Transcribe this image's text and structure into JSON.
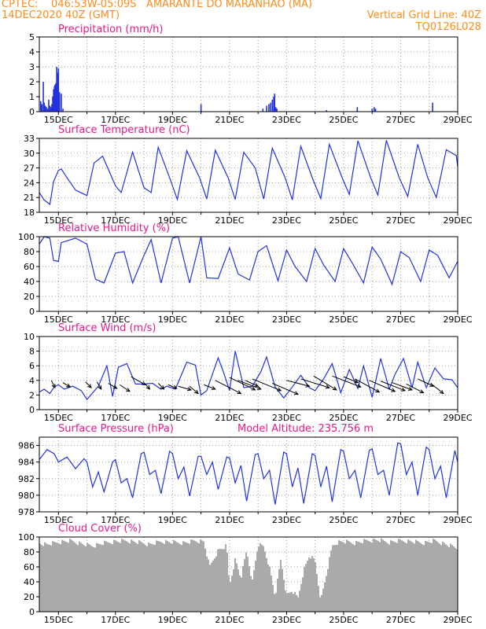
{
  "header": {
    "line1_left": "CPTEC:    046:53W-05:09S   AMARANTE DO MARANHAO (MA)",
    "line2_left": "14DEC2020 40Z (GMT)",
    "line2_right": "Vertical Grid Line: 40Z",
    "line3_right": "TQ0126L028"
  },
  "colors": {
    "header": "#ff8c1a",
    "title": "#e8198b",
    "line": "#2233dd",
    "cloud": "#aaaaaa",
    "wind_arrow": "#000000",
    "grid": "#999999"
  },
  "x_axis": {
    "min": 14.33,
    "max": 29.0,
    "tick_values": [
      15,
      17,
      19,
      21,
      23,
      25,
      27,
      29
    ],
    "tick_labels": [
      "15DEC",
      "17DEC",
      "19DEC",
      "21DEC",
      "23DEC",
      "25DEC",
      "27DEC",
      "29DEC"
    ],
    "minor_ticks": [
      16,
      18,
      20,
      22,
      24,
      26,
      28
    ]
  },
  "chart_data": [
    {
      "type": "bar",
      "title": "Precipitation (mm/h)",
      "ylim": [
        0,
        5
      ],
      "yticks": [
        0,
        1,
        2,
        3,
        4,
        5
      ],
      "series": [
        {
          "x": [
            14.38,
            14.42,
            14.47,
            14.5,
            14.54,
            14.58,
            14.62,
            14.66,
            14.7,
            14.74,
            14.77,
            14.8,
            14.83,
            14.86,
            14.88,
            14.91,
            14.94,
            14.97,
            15.0,
            15.04,
            15.1,
            15.16,
            20.0,
            22.17,
            22.3,
            22.38,
            22.44,
            22.5,
            22.55,
            22.58,
            22.62,
            22.66,
            24.4,
            25.48,
            26.0,
            26.07,
            26.12,
            28.12
          ],
          "values": [
            0.7,
            0.5,
            2.0,
            0.6,
            0.4,
            0.3,
            0.2,
            0.8,
            0.4,
            0.3,
            0.5,
            1.0,
            1.5,
            1.7,
            1.8,
            1.9,
            3.0,
            2.6,
            2.9,
            1.3,
            1.2,
            0.2,
            0.5,
            0.2,
            0.4,
            0.5,
            0.6,
            0.8,
            1.0,
            1.2,
            0.3,
            0.2,
            0.1,
            0.3,
            0.2,
            0.3,
            0.2,
            0.6
          ]
        }
      ]
    },
    {
      "type": "line",
      "title": "Surface Temperature (nC)",
      "ylim": [
        18,
        33
      ],
      "yticks": [
        18,
        21,
        24,
        27,
        30,
        33
      ],
      "series": [
        {
          "x": [
            14.33,
            14.5,
            14.7,
            14.83,
            15.0,
            15.1,
            15.3,
            15.6,
            16.0,
            16.25,
            16.55,
            17.0,
            17.2,
            17.6,
            18.0,
            18.25,
            18.5,
            18.9,
            19.17,
            19.5,
            19.95,
            20.2,
            20.5,
            20.95,
            21.2,
            21.5,
            21.9,
            22.2,
            22.5,
            22.95,
            23.2,
            23.5,
            23.9,
            24.2,
            24.5,
            24.95,
            25.2,
            25.5,
            25.95,
            26.2,
            26.5,
            26.95,
            27.25,
            27.6,
            27.95,
            28.25,
            28.6,
            28.95,
            29.0
          ],
          "values": [
            22.0,
            20.5,
            19.6,
            24.2,
            26.5,
            26.8,
            25.0,
            22.5,
            21.4,
            28.0,
            29.4,
            23.4,
            22.0,
            30.2,
            23.0,
            22.0,
            31.2,
            25.0,
            20.6,
            30.5,
            25.0,
            20.7,
            30.6,
            25.0,
            20.6,
            30.2,
            27.0,
            20.7,
            31.0,
            25.0,
            20.5,
            31.4,
            25.0,
            20.8,
            31.8,
            25.0,
            21.6,
            32.5,
            25.0,
            21.5,
            32.6,
            25.0,
            21.2,
            31.8,
            25.0,
            21.0,
            30.7,
            29.5,
            27.2
          ]
        }
      ]
    },
    {
      "type": "line",
      "title": "Relative Humidity (%)",
      "ylim": [
        0,
        100
      ],
      "yticks": [
        0,
        20,
        40,
        60,
        80,
        100
      ],
      "series": [
        {
          "x": [
            14.33,
            14.5,
            14.7,
            14.83,
            15.0,
            15.1,
            15.6,
            16.0,
            16.3,
            16.6,
            17.0,
            17.3,
            17.6,
            18.0,
            18.25,
            18.6,
            19.0,
            19.2,
            19.6,
            20.0,
            20.2,
            20.6,
            21.0,
            21.3,
            21.7,
            22.0,
            22.3,
            22.7,
            23.0,
            23.3,
            23.7,
            24.0,
            24.3,
            24.7,
            25.0,
            25.3,
            25.7,
            26.0,
            26.3,
            26.7,
            27.0,
            27.3,
            27.7,
            28.0,
            28.3,
            28.7,
            29.0
          ],
          "values": [
            90,
            100,
            98,
            68,
            67,
            92,
            98,
            90,
            43,
            38,
            78,
            80,
            38,
            75,
            96,
            38,
            98,
            100,
            38,
            100,
            45,
            44,
            85,
            50,
            42,
            80,
            88,
            41,
            82,
            60,
            40,
            84,
            62,
            40,
            84,
            65,
            38,
            86,
            70,
            36,
            80,
            72,
            40,
            82,
            75,
            45,
            67
          ]
        }
      ]
    },
    {
      "type": "line",
      "title": "Surface Wind (m/s)",
      "ylim": [
        0,
        10
      ],
      "yticks": [
        0,
        2,
        4,
        6,
        8,
        10
      ],
      "series": [
        {
          "x": [
            14.33,
            14.5,
            14.7,
            14.85,
            15.0,
            15.2,
            15.5,
            15.8,
            16.0,
            16.4,
            16.7,
            16.9,
            17.1,
            17.4,
            17.7,
            18.0,
            18.3,
            18.6,
            18.8,
            19.1,
            19.5,
            19.8,
            20.0,
            20.2,
            20.6,
            20.8,
            21.0,
            21.2,
            21.5,
            21.8,
            22.1,
            22.3,
            22.6,
            22.9,
            23.2,
            23.5,
            23.8,
            24.0,
            24.3,
            24.6,
            24.9,
            25.2,
            25.5,
            25.7,
            26.0,
            26.3,
            26.6,
            26.8,
            27.1,
            27.4,
            27.6,
            27.9,
            28.2,
            28.5,
            28.8,
            29.0
          ],
          "values": [
            2.4,
            2.8,
            2.2,
            3.1,
            3.4,
            2.8,
            3.2,
            2.6,
            1.4,
            3.2,
            6.0,
            1.8,
            5.8,
            6.3,
            3.5,
            3.5,
            3.6,
            2.8,
            3.2,
            2.8,
            6.5,
            6.1,
            2.0,
            2.6,
            7.1,
            5.0,
            2.6,
            8.0,
            3.0,
            3.2,
            5.2,
            7.2,
            3.1,
            1.6,
            3.1,
            4.7,
            3.0,
            2.6,
            4.2,
            6.3,
            2.3,
            5.5,
            2.9,
            6.0,
            1.7,
            7.0,
            2.8,
            4.8,
            7.0,
            3.0,
            6.5,
            3.0,
            5.7,
            4.2,
            4.1,
            3.0
          ]
        }
      ],
      "arrows": [
        {
          "x": 14.75,
          "y": 4.0,
          "dx": 0.13,
          "dy": -1.0
        },
        {
          "x": 15.15,
          "y": 3.7,
          "dx": 0.26,
          "dy": -0.6
        },
        {
          "x": 15.95,
          "y": 3.8,
          "dx": 0.2,
          "dy": -0.8
        },
        {
          "x": 16.35,
          "y": 3.8,
          "dx": 0.15,
          "dy": -1.0
        },
        {
          "x": 16.75,
          "y": 3.6,
          "dx": 0.3,
          "dy": -0.7
        },
        {
          "x": 17.15,
          "y": 3.4,
          "dx": 0.35,
          "dy": -0.9
        },
        {
          "x": 17.55,
          "y": 4.5,
          "dx": 0.5,
          "dy": -1.1
        },
        {
          "x": 18.05,
          "y": 3.5,
          "dx": 0.15,
          "dy": -0.7
        },
        {
          "x": 18.5,
          "y": 3.6,
          "dx": 0.2,
          "dy": -0.8
        },
        {
          "x": 18.85,
          "y": 3.4,
          "dx": 0.3,
          "dy": -0.5
        },
        {
          "x": 19.2,
          "y": 3.2,
          "dx": 0.45,
          "dy": -0.5
        },
        {
          "x": 19.6,
          "y": 3.2,
          "dx": 0.3,
          "dy": -1.0
        },
        {
          "x": 20.1,
          "y": 3.4,
          "dx": 0.4,
          "dy": -0.6
        },
        {
          "x": 20.5,
          "y": 4.0,
          "dx": 0.9,
          "dy": -1.8
        },
        {
          "x": 21.0,
          "y": 4.4,
          "dx": 0.9,
          "dy": -1.7
        },
        {
          "x": 21.3,
          "y": 4.0,
          "dx": 0.8,
          "dy": -1.2
        },
        {
          "x": 21.55,
          "y": 4.0,
          "dx": 0.45,
          "dy": -0.8
        },
        {
          "x": 21.8,
          "y": 4.2,
          "dx": 1.0,
          "dy": -1.6
        },
        {
          "x": 22.5,
          "y": 3.6,
          "dx": 0.9,
          "dy": -1.5
        },
        {
          "x": 23.0,
          "y": 4.0,
          "dx": 0.8,
          "dy": -0.8
        },
        {
          "x": 23.5,
          "y": 4.2,
          "dx": 1.0,
          "dy": -1.2
        },
        {
          "x": 23.95,
          "y": 4.6,
          "dx": 0.8,
          "dy": -1.9
        },
        {
          "x": 24.6,
          "y": 4.6,
          "dx": 1.0,
          "dy": -1.5
        },
        {
          "x": 25.0,
          "y": 4.5,
          "dx": 0.5,
          "dy": -0.8
        },
        {
          "x": 25.4,
          "y": 4.2,
          "dx": 0.85,
          "dy": -1.8
        },
        {
          "x": 25.9,
          "y": 4.0,
          "dx": 0.9,
          "dy": -1.5
        },
        {
          "x": 26.3,
          "y": 3.9,
          "dx": 0.85,
          "dy": -1.3
        },
        {
          "x": 26.7,
          "y": 3.7,
          "dx": 0.7,
          "dy": -1.0
        },
        {
          "x": 27.2,
          "y": 3.5,
          "dx": 0.6,
          "dy": -1.2
        },
        {
          "x": 27.6,
          "y": 4.2,
          "dx": 0.55,
          "dy": -1.0
        },
        {
          "x": 28.05,
          "y": 3.6,
          "dx": 0.45,
          "dy": -1.4
        }
      ]
    },
    {
      "type": "line",
      "title": "Surface Pressure (hPa)",
      "annotation": "Model Altitude: 235.756 m",
      "ylim": [
        978,
        987
      ],
      "yticks": [
        978,
        980,
        982,
        984,
        986
      ],
      "series": [
        {
          "x": [
            14.33,
            14.6,
            14.85,
            15.0,
            15.3,
            15.6,
            15.9,
            16.0,
            16.2,
            16.4,
            16.6,
            16.9,
            17.0,
            17.2,
            17.4,
            17.6,
            17.9,
            18.0,
            18.2,
            18.4,
            18.6,
            18.9,
            19.0,
            19.2,
            19.4,
            19.6,
            19.9,
            20.0,
            20.2,
            20.4,
            20.6,
            20.9,
            21.0,
            21.2,
            21.4,
            21.6,
            21.9,
            22.0,
            22.2,
            22.4,
            22.6,
            22.9,
            23.0,
            23.2,
            23.4,
            23.6,
            23.9,
            24.0,
            24.2,
            24.4,
            24.6,
            24.9,
            25.0,
            25.2,
            25.4,
            25.6,
            25.9,
            26.0,
            26.2,
            26.4,
            26.6,
            26.9,
            27.0,
            27.2,
            27.4,
            27.6,
            27.9,
            28.0,
            28.2,
            28.4,
            28.6,
            28.9,
            29.0
          ],
          "values": [
            984.3,
            985.5,
            985.0,
            984.0,
            984.6,
            983.2,
            984.4,
            984.0,
            981.0,
            982.8,
            980.4,
            984.0,
            984.3,
            981.5,
            982.0,
            979.7,
            985.0,
            985.2,
            982.5,
            983.0,
            980.2,
            985.3,
            985.0,
            982.0,
            983.4,
            979.9,
            984.7,
            984.7,
            982.5,
            984.0,
            980.7,
            984.6,
            984.5,
            981.5,
            983.6,
            979.3,
            984.9,
            985.0,
            982.0,
            983.0,
            978.9,
            985.2,
            985.0,
            981.0,
            983.3,
            979.0,
            985.0,
            984.8,
            981.0,
            983.5,
            979.2,
            985.5,
            985.3,
            982.0,
            983.0,
            979.7,
            985.4,
            985.6,
            982.5,
            983.0,
            980.0,
            986.3,
            986.2,
            982.5,
            984.0,
            980.0,
            985.8,
            985.5,
            982.0,
            983.5,
            979.7,
            985.4,
            984.0
          ]
        }
      ]
    },
    {
      "type": "area",
      "title": "Cloud Cover (%)",
      "ylim": [
        0,
        100
      ],
      "yticks": [
        0,
        20,
        40,
        60,
        80,
        100
      ],
      "series": [
        {
          "x": [
            14.33,
            14.6,
            15.0,
            15.4,
            15.8,
            16.2,
            16.6,
            17.0,
            17.4,
            17.8,
            18.2,
            18.6,
            19.0,
            19.4,
            19.8,
            20.1,
            20.3,
            20.6,
            20.9,
            21.0,
            21.2,
            21.4,
            21.6,
            21.8,
            22.0,
            22.2,
            22.4,
            22.6,
            22.8,
            23.0,
            23.2,
            23.4,
            23.6,
            23.8,
            24.0,
            24.2,
            24.4,
            24.6,
            24.8,
            25.0,
            25.4,
            25.8,
            26.2,
            26.6,
            27.0,
            27.4,
            27.8,
            28.2,
            28.6,
            29.0
          ],
          "values": [
            92,
            90,
            93,
            95,
            91,
            88,
            92,
            94,
            95,
            93,
            90,
            94,
            93,
            92,
            95,
            94,
            60,
            82,
            88,
            35,
            70,
            45,
            82,
            40,
            90,
            87,
            60,
            20,
            70,
            22,
            28,
            18,
            55,
            75,
            68,
            15,
            50,
            88,
            93,
            94,
            92,
            95,
            96,
            93,
            95,
            94,
            92,
            95,
            90,
            85
          ]
        }
      ]
    }
  ]
}
